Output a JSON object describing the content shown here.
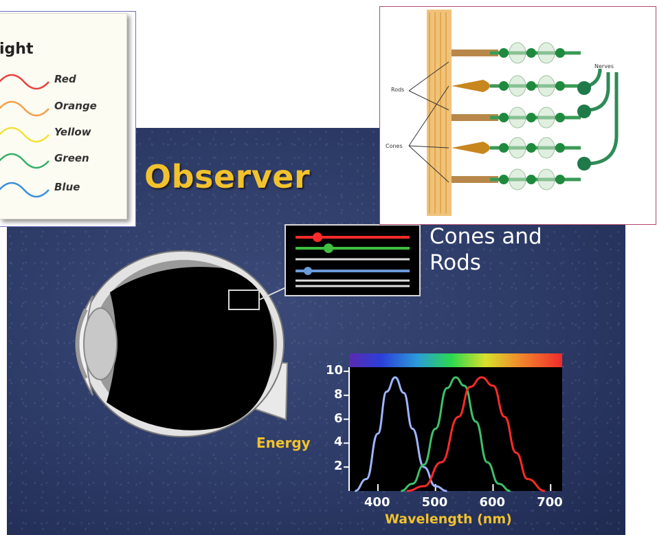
{
  "slide": {
    "title": "Observer",
    "cones_rods_line1": "Cones and",
    "cones_rods_line2": "Rods"
  },
  "light_legend": {
    "title": "ight",
    "items": [
      {
        "label": "Red",
        "color": "#e8413f"
      },
      {
        "label": "Orange",
        "color": "#f5a04a"
      },
      {
        "label": "Yellow",
        "color": "#f3e23a"
      },
      {
        "label": "Green",
        "color": "#36b06a"
      },
      {
        "label": "Blue",
        "color": "#3b8fd9"
      }
    ]
  },
  "retina_diagram": {
    "labels": {
      "rods": "Rods",
      "cones": "Cones",
      "nerves": "Nerves"
    }
  },
  "chart_data": {
    "type": "line",
    "xlabel": "Wavelength (nm)",
    "ylabel": "Energy",
    "xlim": [
      350,
      720
    ],
    "ylim": [
      0,
      10
    ],
    "x_ticks": [
      400,
      500,
      600,
      700
    ],
    "y_ticks": [
      2,
      4,
      6,
      8,
      10
    ],
    "series": [
      {
        "color": "#9fb4ff",
        "peak_x": 430,
        "peak_y": 9.5,
        "x": [
          360,
          380,
          400,
          415,
          430,
          445,
          460,
          480,
          500,
          520
        ],
        "y": [
          0,
          1.0,
          4.8,
          8.3,
          9.5,
          8.2,
          5.2,
          2.0,
          0.4,
          0
        ]
      },
      {
        "color": "#3fbf6a",
        "peak_x": 535,
        "peak_y": 9.5,
        "x": [
          440,
          460,
          480,
          500,
          520,
          535,
          550,
          570,
          590,
          610,
          630
        ],
        "y": [
          0,
          0.6,
          2.2,
          5.2,
          8.6,
          9.5,
          8.8,
          5.8,
          2.4,
          0.6,
          0
        ]
      },
      {
        "color": "#ff2a2a",
        "peak_x": 580,
        "peak_y": 9.5,
        "x": [
          450,
          480,
          510,
          540,
          560,
          580,
          600,
          620,
          640,
          660,
          690
        ],
        "y": [
          0,
          0.4,
          2.4,
          6.2,
          8.7,
          9.5,
          8.8,
          6.2,
          3.2,
          1.0,
          0
        ]
      }
    ]
  },
  "colors": {
    "title_yellow": "#f2c22d",
    "slide_blue": "#2c3a66"
  }
}
